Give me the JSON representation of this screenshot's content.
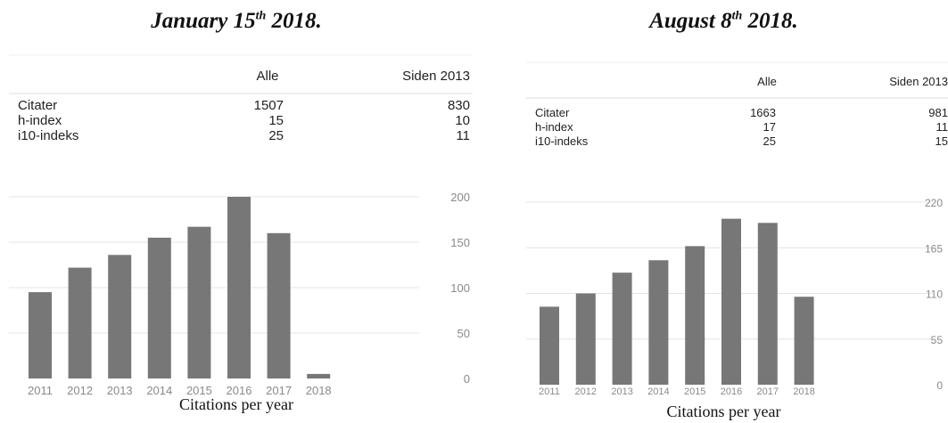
{
  "colors": {
    "bar": "#777777",
    "grid": "#e4e4e4",
    "text": "#222222",
    "axis_text": "#8a8a8a"
  },
  "panels": [
    {
      "heading": {
        "pre": "January 15",
        "sup": "th",
        "post": " 2018."
      },
      "caption": "Citations per year",
      "stats": {
        "headers": [
          "Alle",
          "Siden 2013"
        ],
        "rows": [
          {
            "label": "Citater",
            "all": "1507",
            "since": "830"
          },
          {
            "label": "h-index",
            "all": "15",
            "since": "10"
          },
          {
            "label": "i10-indeks",
            "all": "25",
            "since": "11"
          }
        ]
      }
    },
    {
      "heading": {
        "pre": "August 8",
        "sup": "th",
        "post": " 2018."
      },
      "caption": "Citations per year",
      "stats": {
        "headers": [
          "Alle",
          "Siden 2013"
        ],
        "rows": [
          {
            "label": "Citater",
            "all": "1663",
            "since": "981"
          },
          {
            "label": "h-index",
            "all": "17",
            "since": "11"
          },
          {
            "label": "i10-indeks",
            "all": "25",
            "since": "15"
          }
        ]
      }
    }
  ],
  "chart_data": [
    {
      "type": "bar",
      "categories": [
        "2011",
        "2012",
        "2013",
        "2014",
        "2015",
        "2016",
        "2017",
        "2018"
      ],
      "values": [
        95,
        122,
        136,
        155,
        167,
        200,
        160,
        5
      ],
      "yticks": [
        0,
        50,
        100,
        150,
        200
      ],
      "ylim": [
        0,
        200
      ],
      "axis_position": "right",
      "grid": true
    },
    {
      "type": "bar",
      "categories": [
        "2011",
        "2012",
        "2013",
        "2014",
        "2015",
        "2016",
        "2017",
        "2018"
      ],
      "values": [
        94,
        110,
        135,
        150,
        167,
        200,
        195,
        106
      ],
      "yticks": [
        0,
        55,
        110,
        165,
        220
      ],
      "ylim": [
        0,
        220
      ],
      "axis_position": "right",
      "grid": true
    }
  ]
}
